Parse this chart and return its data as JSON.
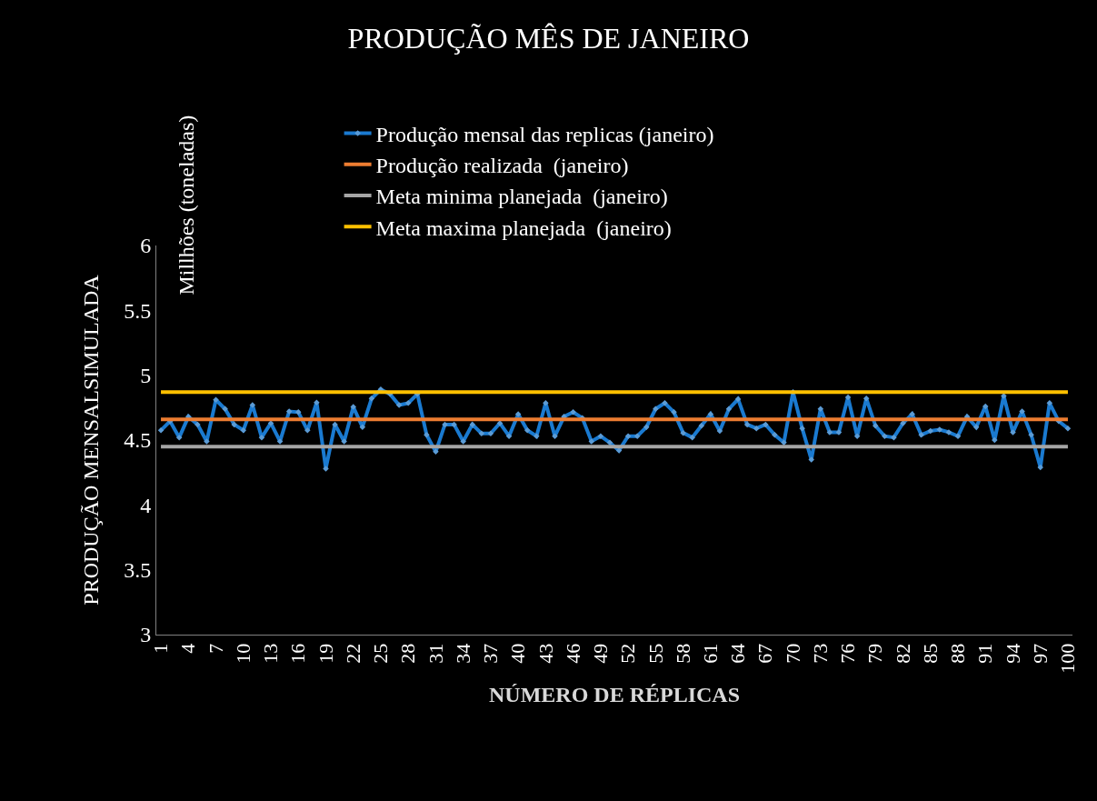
{
  "chart_data": {
    "type": "line",
    "title": "PRODUÇÃO MÊS DE JANEIRO",
    "xlabel": "NÚMERO DE RÉPLICAS",
    "ylabel": "PRODUÇÃO MENSALSIMULADA",
    "annotations": [
      "Millhões (toneladas)"
    ],
    "x": [
      1,
      2,
      3,
      4,
      5,
      6,
      7,
      8,
      9,
      10,
      11,
      12,
      13,
      14,
      15,
      16,
      17,
      18,
      19,
      20,
      21,
      22,
      23,
      24,
      25,
      26,
      27,
      28,
      29,
      30,
      31,
      32,
      33,
      34,
      35,
      36,
      37,
      38,
      39,
      40,
      41,
      42,
      43,
      44,
      45,
      46,
      47,
      48,
      49,
      50,
      51,
      52,
      53,
      54,
      55,
      56,
      57,
      58,
      59,
      60,
      61,
      62,
      63,
      64,
      65,
      66,
      67,
      68,
      69,
      70,
      71,
      72,
      73,
      74,
      75,
      76,
      77,
      78,
      79,
      80,
      81,
      82,
      83,
      84,
      85,
      86,
      87,
      88,
      89,
      90,
      91,
      92,
      93,
      94,
      95,
      96,
      97,
      98,
      99,
      100
    ],
    "xlim": [
      0.5,
      100.5
    ],
    "xticks": [
      1,
      4,
      7,
      10,
      13,
      16,
      19,
      22,
      25,
      28,
      31,
      34,
      37,
      40,
      43,
      46,
      49,
      52,
      55,
      58,
      61,
      64,
      67,
      70,
      73,
      76,
      79,
      82,
      85,
      88,
      91,
      94,
      97,
      100
    ],
    "ylim": [
      3,
      6
    ],
    "yticks": [
      3,
      3.5,
      4,
      4.5,
      5,
      5.5,
      6
    ],
    "grid": false,
    "legend": "top",
    "line_style": "solid",
    "series": [
      {
        "name": "Produção mensal das replicas (janeiro)",
        "color": "#1a7ad0",
        "marker": "diamond",
        "values": [
          4.575,
          4.645,
          4.52,
          4.68,
          4.62,
          4.49,
          4.81,
          4.74,
          4.62,
          4.575,
          4.77,
          4.52,
          4.63,
          4.49,
          4.72,
          4.715,
          4.575,
          4.79,
          4.28,
          4.62,
          4.49,
          4.755,
          4.6,
          4.82,
          4.89,
          4.855,
          4.77,
          4.785,
          4.855,
          4.54,
          4.41,
          4.62,
          4.62,
          4.49,
          4.62,
          4.55,
          4.55,
          4.63,
          4.53,
          4.7,
          4.575,
          4.53,
          4.785,
          4.53,
          4.68,
          4.715,
          4.67,
          4.49,
          4.53,
          4.48,
          4.42,
          4.53,
          4.53,
          4.6,
          4.74,
          4.785,
          4.715,
          4.555,
          4.52,
          4.61,
          4.7,
          4.57,
          4.74,
          4.815,
          4.62,
          4.59,
          4.62,
          4.54,
          4.48,
          4.87,
          4.59,
          4.35,
          4.74,
          4.56,
          4.56,
          4.83,
          4.53,
          4.82,
          4.61,
          4.53,
          4.52,
          4.63,
          4.7,
          4.54,
          4.57,
          4.58,
          4.56,
          4.53,
          4.68,
          4.6,
          4.76,
          4.5,
          4.84,
          4.56,
          4.72,
          4.54,
          4.29,
          4.785,
          4.645,
          4.59
        ]
      },
      {
        "name": "Produção realizada  (janeiro)",
        "color": "#ed7d31",
        "marker": "none",
        "values": [
          4.66,
          4.66,
          4.66,
          4.66,
          4.66,
          4.66,
          4.66,
          4.66,
          4.66,
          4.66,
          4.66,
          4.66,
          4.66,
          4.66,
          4.66,
          4.66,
          4.66,
          4.66,
          4.66,
          4.66,
          4.66,
          4.66,
          4.66,
          4.66,
          4.66,
          4.66,
          4.66,
          4.66,
          4.66,
          4.66,
          4.66,
          4.66,
          4.66,
          4.66,
          4.66,
          4.66,
          4.66,
          4.66,
          4.66,
          4.66,
          4.66,
          4.66,
          4.66,
          4.66,
          4.66,
          4.66,
          4.66,
          4.66,
          4.66,
          4.66,
          4.66,
          4.66,
          4.66,
          4.66,
          4.66,
          4.66,
          4.66,
          4.66,
          4.66,
          4.66,
          4.66,
          4.66,
          4.66,
          4.66,
          4.66,
          4.66,
          4.66,
          4.66,
          4.66,
          4.66,
          4.66,
          4.66,
          4.66,
          4.66,
          4.66,
          4.66,
          4.66,
          4.66,
          4.66,
          4.66,
          4.66,
          4.66,
          4.66,
          4.66,
          4.66,
          4.66,
          4.66,
          4.66,
          4.66,
          4.66,
          4.66,
          4.66,
          4.66,
          4.66,
          4.66,
          4.66,
          4.66,
          4.66,
          4.66,
          4.66
        ]
      },
      {
        "name": "Meta minima planejada  (janeiro)",
        "color": "#a5a5a5",
        "marker": "none",
        "values": [
          4.45,
          4.45,
          4.45,
          4.45,
          4.45,
          4.45,
          4.45,
          4.45,
          4.45,
          4.45,
          4.45,
          4.45,
          4.45,
          4.45,
          4.45,
          4.45,
          4.45,
          4.45,
          4.45,
          4.45,
          4.45,
          4.45,
          4.45,
          4.45,
          4.45,
          4.45,
          4.45,
          4.45,
          4.45,
          4.45,
          4.45,
          4.45,
          4.45,
          4.45,
          4.45,
          4.45,
          4.45,
          4.45,
          4.45,
          4.45,
          4.45,
          4.45,
          4.45,
          4.45,
          4.45,
          4.45,
          4.45,
          4.45,
          4.45,
          4.45,
          4.45,
          4.45,
          4.45,
          4.45,
          4.45,
          4.45,
          4.45,
          4.45,
          4.45,
          4.45,
          4.45,
          4.45,
          4.45,
          4.45,
          4.45,
          4.45,
          4.45,
          4.45,
          4.45,
          4.45,
          4.45,
          4.45,
          4.45,
          4.45,
          4.45,
          4.45,
          4.45,
          4.45,
          4.45,
          4.45,
          4.45,
          4.45,
          4.45,
          4.45,
          4.45,
          4.45,
          4.45,
          4.45,
          4.45,
          4.45,
          4.45,
          4.45,
          4.45,
          4.45,
          4.45,
          4.45,
          4.45,
          4.45,
          4.45,
          4.45
        ]
      },
      {
        "name": "Meta maxima planejada  (janeiro)",
        "color": "#ffc000",
        "marker": "none",
        "values": [
          4.87,
          4.87,
          4.87,
          4.87,
          4.87,
          4.87,
          4.87,
          4.87,
          4.87,
          4.87,
          4.87,
          4.87,
          4.87,
          4.87,
          4.87,
          4.87,
          4.87,
          4.87,
          4.87,
          4.87,
          4.87,
          4.87,
          4.87,
          4.87,
          4.87,
          4.87,
          4.87,
          4.87,
          4.87,
          4.87,
          4.87,
          4.87,
          4.87,
          4.87,
          4.87,
          4.87,
          4.87,
          4.87,
          4.87,
          4.87,
          4.87,
          4.87,
          4.87,
          4.87,
          4.87,
          4.87,
          4.87,
          4.87,
          4.87,
          4.87,
          4.87,
          4.87,
          4.87,
          4.87,
          4.87,
          4.87,
          4.87,
          4.87,
          4.87,
          4.87,
          4.87,
          4.87,
          4.87,
          4.87,
          4.87,
          4.87,
          4.87,
          4.87,
          4.87,
          4.87,
          4.87,
          4.87,
          4.87,
          4.87,
          4.87,
          4.87,
          4.87,
          4.87,
          4.87,
          4.87,
          4.87,
          4.87,
          4.87,
          4.87,
          4.87,
          4.87,
          4.87,
          4.87,
          4.87,
          4.87,
          4.87,
          4.87,
          4.87,
          4.87,
          4.87,
          4.87,
          4.87,
          4.87,
          4.87,
          4.87
        ]
      }
    ]
  }
}
